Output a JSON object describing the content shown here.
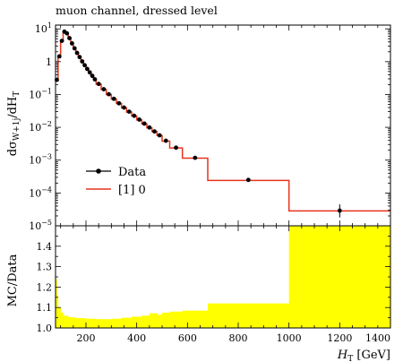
{
  "chart_data": [
    {
      "type": "line",
      "title": "muon channel, dressed level",
      "ylabel_main": "dσ",
      "ylabel_sub": "W+1j",
      "ylabel_tail": "/dH",
      "ylabel_tail_sub": "T",
      "xlim": [
        80,
        1400
      ],
      "ylim": [
        1e-05,
        13
      ],
      "yscale": "log",
      "yticks": [
        {
          "v": 1e-05,
          "base": "10",
          "exp": "−5"
        },
        {
          "v": 0.0001,
          "base": "10",
          "exp": "−4"
        },
        {
          "v": 0.001,
          "base": "10",
          "exp": "−3"
        },
        {
          "v": 0.01,
          "base": "10",
          "exp": "−2"
        },
        {
          "v": 0.1,
          "base": "10",
          "exp": "−1"
        },
        {
          "v": 1,
          "base": "1",
          "exp": ""
        },
        {
          "v": 10,
          "base": "10",
          "exp": "1"
        }
      ],
      "legend": {
        "placement": "bottom-left",
        "data_label": "Data",
        "mc_label": "[1] 0"
      },
      "data_color": "#000000",
      "mc_color": "#e8341c",
      "bins": [
        {
          "lo": 80,
          "hi": 90,
          "data": 0.28,
          "mc": 0.26
        },
        {
          "lo": 90,
          "hi": 100,
          "data": 1.45,
          "mc": 1.4
        },
        {
          "lo": 100,
          "hi": 110,
          "data": 4.3,
          "mc": 4.2
        },
        {
          "lo": 110,
          "hi": 120,
          "data": 8.2,
          "mc": 8.0
        },
        {
          "lo": 120,
          "hi": 130,
          "data": 7.3,
          "mc": 7.2
        },
        {
          "lo": 130,
          "hi": 140,
          "data": 5.2,
          "mc": 5.1
        },
        {
          "lo": 140,
          "hi": 150,
          "data": 3.6,
          "mc": 3.5
        },
        {
          "lo": 150,
          "hi": 160,
          "data": 2.55,
          "mc": 2.5
        },
        {
          "lo": 160,
          "hi": 170,
          "data": 1.85,
          "mc": 1.82
        },
        {
          "lo": 170,
          "hi": 180,
          "data": 1.38,
          "mc": 1.35
        },
        {
          "lo": 180,
          "hi": 190,
          "data": 1.02,
          "mc": 1.0
        },
        {
          "lo": 190,
          "hi": 200,
          "data": 0.78,
          "mc": 0.76
        },
        {
          "lo": 200,
          "hi": 210,
          "data": 0.6,
          "mc": 0.59
        },
        {
          "lo": 210,
          "hi": 220,
          "data": 0.47,
          "mc": 0.46
        },
        {
          "lo": 220,
          "hi": 230,
          "data": 0.37,
          "mc": 0.36
        },
        {
          "lo": 230,
          "hi": 240,
          "data": 0.29,
          "mc": 0.285
        },
        {
          "lo": 240,
          "hi": 260,
          "data": 0.21,
          "mc": 0.205
        },
        {
          "lo": 260,
          "hi": 280,
          "data": 0.145,
          "mc": 0.142
        },
        {
          "lo": 280,
          "hi": 300,
          "data": 0.102,
          "mc": 0.1
        },
        {
          "lo": 300,
          "hi": 320,
          "data": 0.074,
          "mc": 0.072
        },
        {
          "lo": 320,
          "hi": 340,
          "data": 0.054,
          "mc": 0.053
        },
        {
          "lo": 340,
          "hi": 360,
          "data": 0.04,
          "mc": 0.039
        },
        {
          "lo": 360,
          "hi": 380,
          "data": 0.03,
          "mc": 0.029
        },
        {
          "lo": 380,
          "hi": 400,
          "data": 0.0225,
          "mc": 0.022
        },
        {
          "lo": 400,
          "hi": 420,
          "data": 0.0172,
          "mc": 0.0168
        },
        {
          "lo": 420,
          "hi": 440,
          "data": 0.013,
          "mc": 0.0127
        },
        {
          "lo": 440,
          "hi": 460,
          "data": 0.0099,
          "mc": 0.0097
        },
        {
          "lo": 460,
          "hi": 480,
          "data": 0.0075,
          "mc": 0.0074
        },
        {
          "lo": 480,
          "hi": 500,
          "data": 0.0057,
          "mc": 0.0056
        },
        {
          "lo": 500,
          "hi": 530,
          "data": 0.0039,
          "mc": 0.0038
        },
        {
          "lo": 530,
          "hi": 580,
          "data": 0.0024,
          "mc": 0.00235
        },
        {
          "lo": 580,
          "hi": 680,
          "data": 0.00118,
          "mc": 0.00115
        },
        {
          "lo": 680,
          "hi": 1000,
          "data": 0.00025,
          "mc": 0.00024
        },
        {
          "lo": 1000,
          "hi": 1400,
          "data": 2.9e-05,
          "mc": 2.85e-05,
          "err_lo": 1.8e-05,
          "err_hi": 4.5e-05
        }
      ]
    },
    {
      "type": "area",
      "ylabel": "MC/Data",
      "xlabel_main": "H",
      "xlabel_sub": "T",
      "xlabel_unit": " [GeV]",
      "xlim": [
        80,
        1400
      ],
      "ylim": [
        1.0,
        1.5
      ],
      "yticks": [
        "1.0",
        "1.1",
        "1.2",
        "1.3",
        "1.4"
      ],
      "xticks": [
        "200",
        "400",
        "600",
        "800",
        "1000",
        "1200",
        "1400"
      ],
      "band_color": "#ffff00",
      "band": [
        {
          "lo": 80,
          "hi": 85,
          "upper": 1.24
        },
        {
          "lo": 85,
          "hi": 90,
          "upper": 1.16
        },
        {
          "lo": 90,
          "hi": 100,
          "upper": 1.1
        },
        {
          "lo": 100,
          "hi": 110,
          "upper": 1.075
        },
        {
          "lo": 110,
          "hi": 130,
          "upper": 1.06
        },
        {
          "lo": 130,
          "hi": 160,
          "upper": 1.052
        },
        {
          "lo": 160,
          "hi": 200,
          "upper": 1.048
        },
        {
          "lo": 200,
          "hi": 240,
          "upper": 1.045
        },
        {
          "lo": 240,
          "hi": 300,
          "upper": 1.043
        },
        {
          "lo": 300,
          "hi": 340,
          "upper": 1.045
        },
        {
          "lo": 340,
          "hi": 380,
          "upper": 1.05
        },
        {
          "lo": 380,
          "hi": 420,
          "upper": 1.055
        },
        {
          "lo": 420,
          "hi": 450,
          "upper": 1.06
        },
        {
          "lo": 450,
          "hi": 480,
          "upper": 1.072
        },
        {
          "lo": 480,
          "hi": 500,
          "upper": 1.065
        },
        {
          "lo": 500,
          "hi": 530,
          "upper": 1.075
        },
        {
          "lo": 530,
          "hi": 580,
          "upper": 1.08
        },
        {
          "lo": 580,
          "hi": 680,
          "upper": 1.085
        },
        {
          "lo": 680,
          "hi": 1000,
          "upper": 1.12
        },
        {
          "lo": 1000,
          "hi": 1400,
          "upper": 1.5
        }
      ]
    }
  ]
}
